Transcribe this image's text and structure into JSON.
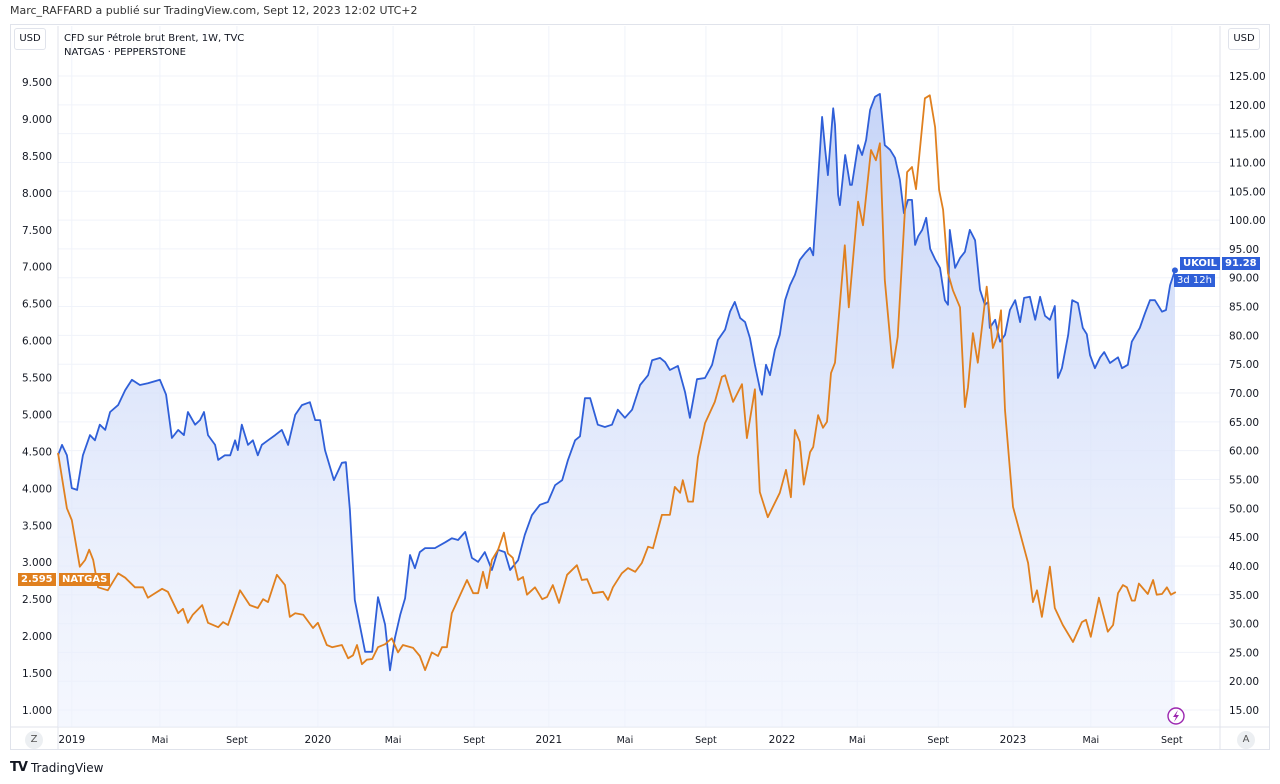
{
  "header": {
    "published": "Marc_RAFFARD a publié sur TradingView.com, Sept 12, 2023 12:02 UTC+2"
  },
  "legend": {
    "line1": "CFD sur Pétrole brut Brent, 1W, TVC",
    "line2": "NATGAS · PEPPERSTONE"
  },
  "currency_left": "USD",
  "currency_right": "USD",
  "buttons": {
    "auto": "A",
    "zoom": "Z",
    "lightning_icon": "lightning-icon"
  },
  "footer": {
    "logo": "TV",
    "brand": "TradingView"
  },
  "colors": {
    "ukoil": "#2f5fd8",
    "natgas": "#e0801f"
  },
  "labels": {
    "ukoil": {
      "name": "UKOIL",
      "value": "91.28",
      "countdown": "3d 12h"
    },
    "natgas": {
      "name": "NATGAS",
      "value": "2.595"
    }
  },
  "chart_data": {
    "type": "line",
    "title": "CFD sur Pétrole brut Brent, 1W, TVC vs NATGAS · PEPPERSTONE",
    "x_unit": "weeks from start of visible range (≈ Dec 2018)",
    "left_axis": {
      "label": "USD",
      "range": [
        0.9,
        9.6
      ],
      "ticks": [
        "1.000",
        "1.500",
        "2.000",
        "2.500",
        "3.000",
        "3.500",
        "4.000",
        "4.500",
        "5.000",
        "5.500",
        "6.000",
        "6.500",
        "7.000",
        "7.500",
        "8.000",
        "8.500",
        "9.000",
        "9.500"
      ]
    },
    "right_axis": {
      "label": "USD",
      "range": [
        13,
        126
      ],
      "ticks": [
        "15.00",
        "20.00",
        "25.00",
        "30.00",
        "35.00",
        "40.00",
        "45.00",
        "50.00",
        "55.00",
        "60.00",
        "65.00",
        "70.00",
        "75.00",
        "80.00",
        "85.00",
        "90.00",
        "95.00",
        "100.00",
        "105.00",
        "110.00",
        "115.00",
        "120.00",
        "125.00"
      ]
    },
    "time_ticks": [
      {
        "label": "2019",
        "w": 3.1
      },
      {
        "label": "Mai",
        "w": 22.9
      },
      {
        "label": "Sept",
        "w": 40.2
      },
      {
        "label": "2020",
        "w": 58.4
      },
      {
        "label": "Mai",
        "w": 75.3
      },
      {
        "label": "Sept",
        "w": 93.5
      },
      {
        "label": "2021",
        "w": 110.3
      },
      {
        "label": "Mai",
        "w": 127.4
      },
      {
        "label": "Sept",
        "w": 145.6
      },
      {
        "label": "2022",
        "w": 162.7
      },
      {
        "label": "Mai",
        "w": 179.6
      },
      {
        "label": "Sept",
        "w": 197.8
      },
      {
        "label": "2023",
        "w": 214.6
      },
      {
        "label": "Mai",
        "w": 232.1
      },
      {
        "label": "Sept",
        "w": 250.3
      }
    ],
    "grid": true,
    "series": [
      {
        "name": "UKOIL",
        "axis": "right",
        "style": "area",
        "x": [
          0,
          0.9,
          2.0,
          3.1,
          4.3,
          5.6,
          7.2,
          8.3,
          9.4,
          10.6,
          11.7,
          13.5,
          15.1,
          16.6,
          18.4,
          20.2,
          22.9,
          24.3,
          25.6,
          27.0,
          28.3,
          29.2,
          30.8,
          31.9,
          32.8,
          33.7,
          35.3,
          36.0,
          37.5,
          38.7,
          39.8,
          40.4,
          41.3,
          42.7,
          43.8,
          44.9,
          45.8,
          47.2,
          48.8,
          50.3,
          51.7,
          53.3,
          54.8,
          56.6,
          57.8,
          58.9,
          60.0,
          62.0,
          63.8,
          64.7,
          65.6,
          66.7,
          69.0,
          70.6,
          71.9,
          73.5,
          74.6,
          75.7,
          76.9,
          78.0,
          79.1,
          80.2,
          81.3,
          82.5,
          84.7,
          87.0,
          88.5,
          89.9,
          91.5,
          93.0,
          94.4,
          95.9,
          97.5,
          98.9,
          100.4,
          101.6,
          103.4,
          104.9,
          106.5,
          108.3,
          110.1,
          111.7,
          113.3,
          114.6,
          116.2,
          117.3,
          118.4,
          119.6,
          121.3,
          122.9,
          124.5,
          125.8,
          127.4,
          129.0,
          130.8,
          132.6,
          133.5,
          135.3,
          136.4,
          137.5,
          139.3,
          140.9,
          142.0,
          143.6,
          145.4,
          147.0,
          148.3,
          149.9,
          151.0,
          152.1,
          153.3,
          154.4,
          155.5,
          156.6,
          157.8,
          158.2,
          159.1,
          160.0,
          161.1,
          162.2,
          163.4,
          164.5,
          165.6,
          166.7,
          167.9,
          169.0,
          169.7,
          170.8,
          171.7,
          172.4,
          173.0,
          174.2,
          174.6,
          175.3,
          175.7,
          176.9,
          178.0,
          178.4,
          179.8,
          180.7,
          181.6,
          182.5,
          183.6,
          184.7,
          185.8,
          187.0,
          188.1,
          189.2,
          190.1,
          191.0,
          191.9,
          192.6,
          193.3,
          194.2,
          195.1,
          196.0,
          197.1,
          198.2,
          199.3,
          200.0,
          200.4,
          201.6,
          202.7,
          203.8,
          204.9,
          206.1,
          207.2,
          208.3,
          209.0,
          209.4,
          210.6,
          211.7,
          212.8,
          213.9,
          215.1,
          216.2,
          217.1,
          218.4,
          219.6,
          220.7,
          221.8,
          222.9,
          224.0,
          224.7,
          225.6,
          227.0,
          227.9,
          229.2,
          230.3,
          231.2,
          231.9,
          233.0,
          234.2,
          235.1,
          236.4,
          238.2,
          239.1,
          240.4,
          241.3,
          243.1,
          244.3,
          245.4,
          246.5,
          248.1,
          249.0,
          249.9,
          251.0
        ],
        "values": [
          59.2,
          61.0,
          59.2,
          53.5,
          53.2,
          59.2,
          62.7,
          61.8,
          64.5,
          63.6,
          66.7,
          67.9,
          70.5,
          72.3,
          71.4,
          71.7,
          72.3,
          69.7,
          62.2,
          63.6,
          62.7,
          66.7,
          64.5,
          65.3,
          66.7,
          62.7,
          61.0,
          58.4,
          59.2,
          59.2,
          61.8,
          60.1,
          64.5,
          61.0,
          61.8,
          59.2,
          61.0,
          61.8,
          62.7,
          63.6,
          61.0,
          66.2,
          67.9,
          68.4,
          65.3,
          65.3,
          60.1,
          54.9,
          57.9,
          58.0,
          49.7,
          34.1,
          25.1,
          25.1,
          34.6,
          29.8,
          21.9,
          27.5,
          31.5,
          34.4,
          41.9,
          39.6,
          42.4,
          43.1,
          43.1,
          44.1,
          44.8,
          44.5,
          45.9,
          41.4,
          40.7,
          42.4,
          39.3,
          42.8,
          42.4,
          39.3,
          41.0,
          45.4,
          48.8,
          50.6,
          51.1,
          54.0,
          54.9,
          58.4,
          61.8,
          62.5,
          69.1,
          69.1,
          64.5,
          64.1,
          64.5,
          67.1,
          65.7,
          67.1,
          71.4,
          73.1,
          75.7,
          76.1,
          75.4,
          74.0,
          74.7,
          70.2,
          65.7,
          72.4,
          72.6,
          74.9,
          79.2,
          81.0,
          84.1,
          85.8,
          83.0,
          82.3,
          79.5,
          74.9,
          70.5,
          69.7,
          74.9,
          73.1,
          77.5,
          80.1,
          86.1,
          88.7,
          90.5,
          93.1,
          94.3,
          95.2,
          93.9,
          107.0,
          117.9,
          112.2,
          107.8,
          119.4,
          116.5,
          104.4,
          102.6,
          111.3,
          106.1,
          106.1,
          113.0,
          111.3,
          113.9,
          119.1,
          121.4,
          121.9,
          113.0,
          112.2,
          110.8,
          107.0,
          101.2,
          103.5,
          103.5,
          95.7,
          97.2,
          98.3,
          100.4,
          95.0,
          93.2,
          91.7,
          86.1,
          85.3,
          98.3,
          91.7,
          93.4,
          94.5,
          98.3,
          96.5,
          87.9,
          85.3,
          85.8,
          81.3,
          82.7,
          78.9,
          80.1,
          84.4,
          86.1,
          82.3,
          86.5,
          86.7,
          82.7,
          86.7,
          83.4,
          82.7,
          85.1,
          72.6,
          74.3,
          80.1,
          86.1,
          85.6,
          81.3,
          80.2,
          76.6,
          74.3,
          76.2,
          77.1,
          75.2,
          76.2,
          74.3,
          74.9,
          78.9,
          81.3,
          83.9,
          86.1,
          86.1,
          84.1,
          84.4,
          88.7,
          91.28
        ]
      },
      {
        "name": "NATGAS",
        "axis": "left",
        "style": "line",
        "x": [
          0,
          2.0,
          3.1,
          4.9,
          6.1,
          7.0,
          7.9,
          9.0,
          11.2,
          13.5,
          15.1,
          17.3,
          19.1,
          20.2,
          21.8,
          23.4,
          24.7,
          27.0,
          28.1,
          29.2,
          30.3,
          32.4,
          33.7,
          36.0,
          37.1,
          38.2,
          40.9,
          43.1,
          44.9,
          46.1,
          47.2,
          49.2,
          51.0,
          52.1,
          53.3,
          55.1,
          57.3,
          58.4,
          60.4,
          61.6,
          63.8,
          65.2,
          66.3,
          67.2,
          68.3,
          69.4,
          70.6,
          71.9,
          73.5,
          75.0,
          76.4,
          77.5,
          79.8,
          81.3,
          82.5,
          84.0,
          85.4,
          86.3,
          87.4,
          88.5,
          91.9,
          93.3,
          94.4,
          95.5,
          96.4,
          97.5,
          98.9,
          100.2,
          101.1,
          102.2,
          103.4,
          104.5,
          105.4,
          107.2,
          108.8,
          109.9,
          111.2,
          112.6,
          114.4,
          116.6,
          117.7,
          118.9,
          120.2,
          122.5,
          123.6,
          124.7,
          126.7,
          128.1,
          129.7,
          131.2,
          132.6,
          133.7,
          135.7,
          137.5,
          138.6,
          139.8,
          140.4,
          141.6,
          142.7,
          143.8,
          145.4,
          147.6,
          149.2,
          149.9,
          151.7,
          153.7,
          154.8,
          156.6,
          157.7,
          159.5,
          162.2,
          163.6,
          164.7,
          165.6,
          166.7,
          167.6,
          169.0,
          169.7,
          170.8,
          171.9,
          172.8,
          173.7,
          174.6,
          176.8,
          177.7,
          179.8,
          180.9,
          182.7,
          183.8,
          184.7,
          185.8,
          187.6,
          188.7,
          190.8,
          191.9,
          192.8,
          194.8,
          195.9,
          197.1,
          198.0,
          198.9,
          200.0,
          201.1,
          202.7,
          203.8,
          204.5,
          205.6,
          206.7,
          208.7,
          210.1,
          211.0,
          211.9,
          212.8,
          214.6,
          218.0,
          219.1,
          220.0,
          221.1,
          222.9,
          224.0,
          225.8,
          228.1,
          230.1,
          231.0,
          232.1,
          233.9,
          235.9,
          237.1,
          238.2,
          239.3,
          240.2,
          241.3,
          242.0,
          242.9,
          244.9,
          246.1,
          246.9,
          248.1,
          249.2,
          250.1,
          251.2
        ],
        "values": [
          4.48,
          3.73,
          3.57,
          2.94,
          3.03,
          3.17,
          3.03,
          2.66,
          2.62,
          2.85,
          2.79,
          2.66,
          2.66,
          2.52,
          2.58,
          2.64,
          2.6,
          2.31,
          2.37,
          2.18,
          2.29,
          2.42,
          2.18,
          2.12,
          2.19,
          2.15,
          2.62,
          2.42,
          2.38,
          2.5,
          2.46,
          2.83,
          2.69,
          2.26,
          2.31,
          2.29,
          2.11,
          2.18,
          1.88,
          1.85,
          1.88,
          1.7,
          1.74,
          1.88,
          1.62,
          1.68,
          1.69,
          1.85,
          1.89,
          1.97,
          1.78,
          1.88,
          1.84,
          1.73,
          1.54,
          1.78,
          1.73,
          1.85,
          1.85,
          2.31,
          2.76,
          2.58,
          2.58,
          2.87,
          2.65,
          3.03,
          3.17,
          3.4,
          3.12,
          3.06,
          2.76,
          2.8,
          2.56,
          2.66,
          2.5,
          2.53,
          2.69,
          2.45,
          2.83,
          2.96,
          2.76,
          2.77,
          2.58,
          2.6,
          2.49,
          2.66,
          2.85,
          2.92,
          2.87,
          2.99,
          3.21,
          3.19,
          3.64,
          3.64,
          4.02,
          3.94,
          4.11,
          3.82,
          3.82,
          4.42,
          4.88,
          5.17,
          5.51,
          5.53,
          5.17,
          5.41,
          4.68,
          5.34,
          3.95,
          3.61,
          3.94,
          4.25,
          3.88,
          4.79,
          4.63,
          4.05,
          4.49,
          4.56,
          4.99,
          4.82,
          4.9,
          5.56,
          5.7,
          7.29,
          6.45,
          7.88,
          7.56,
          8.58,
          8.44,
          8.67,
          6.82,
          5.63,
          6.05,
          8.28,
          8.35,
          8.05,
          9.28,
          9.32,
          8.89,
          8.04,
          7.77,
          6.91,
          6.68,
          6.45,
          5.1,
          5.37,
          6.1,
          5.7,
          6.73,
          5.9,
          6.05,
          6.41,
          5.06,
          3.75,
          2.99,
          2.46,
          2.62,
          2.26,
          2.94,
          2.38,
          2.15,
          1.92,
          2.19,
          2.22,
          1.99,
          2.52,
          2.06,
          2.15,
          2.58,
          2.69,
          2.66,
          2.48,
          2.48,
          2.71,
          2.57,
          2.76,
          2.56,
          2.57,
          2.66,
          2.56,
          2.595
        ]
      }
    ]
  }
}
